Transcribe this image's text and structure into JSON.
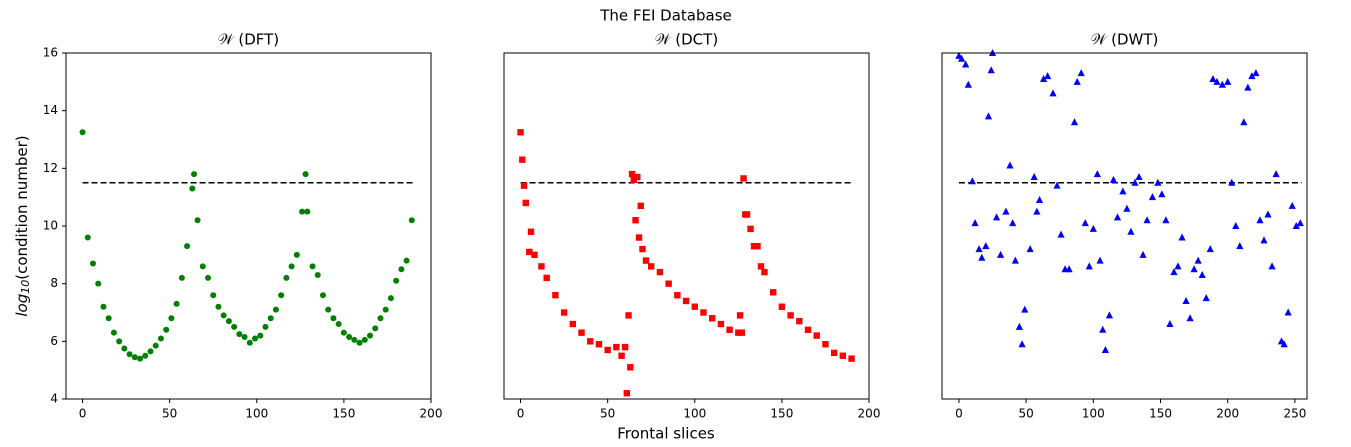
{
  "title": "The FEI Database",
  "xlabel": "Frontal slices",
  "ylabel": {
    "base": "log",
    "sub": "10",
    "rest": "(condition number)"
  },
  "chart_data": [
    {
      "type": "scatter",
      "title": "𝒲 (DFT)",
      "color": "#008000",
      "marker": "circle",
      "xlim": [
        -9.5,
        200
      ],
      "xticks": [
        0,
        50,
        100,
        150,
        200
      ],
      "ylim": [
        4,
        16
      ],
      "yticks": [
        4,
        6,
        8,
        10,
        12,
        14,
        16
      ],
      "hline": {
        "y": 11.5,
        "x": [
          0,
          190
        ],
        "color": "#000000"
      },
      "x": [
        0,
        3,
        6,
        9,
        12,
        15,
        18,
        21,
        24,
        27,
        30,
        33,
        36,
        39,
        42,
        45,
        48,
        51,
        54,
        57,
        60,
        63,
        64,
        66,
        69,
        72,
        75,
        78,
        81,
        84,
        87,
        90,
        93,
        96,
        99,
        102,
        105,
        108,
        111,
        114,
        117,
        120,
        123,
        126,
        128,
        129,
        132,
        135,
        138,
        141,
        144,
        147,
        150,
        153,
        156,
        159,
        162,
        165,
        168,
        171,
        174,
        177,
        180,
        183,
        186,
        189
      ],
      "values": [
        13.25,
        9.6,
        8.7,
        8.0,
        7.2,
        6.8,
        6.3,
        6.0,
        5.75,
        5.55,
        5.45,
        5.4,
        5.5,
        5.65,
        5.85,
        6.1,
        6.4,
        6.8,
        7.3,
        8.2,
        9.3,
        11.3,
        11.8,
        10.2,
        8.6,
        8.2,
        7.6,
        7.2,
        6.9,
        6.7,
        6.5,
        6.25,
        6.15,
        5.95,
        6.1,
        6.2,
        6.5,
        6.8,
        7.1,
        7.6,
        8.2,
        8.6,
        9.0,
        10.5,
        11.8,
        10.5,
        8.6,
        8.3,
        7.6,
        7.1,
        6.8,
        6.6,
        6.3,
        6.15,
        6.05,
        5.95,
        6.05,
        6.2,
        6.45,
        6.8,
        7.1,
        7.5,
        8.1,
        8.5,
        8.8,
        10.2
      ]
    },
    {
      "type": "scatter",
      "title": "𝒲 (DCT)",
      "color": "#ff0000",
      "marker": "square",
      "xlim": [
        -9.5,
        200
      ],
      "xticks": [
        0,
        50,
        100,
        150,
        200
      ],
      "ylim": [
        4,
        16
      ],
      "hline": {
        "y": 11.5,
        "x": [
          0,
          190
        ],
        "color": "#000000"
      },
      "x": [
        0,
        1,
        2,
        3,
        5,
        6,
        8,
        12,
        15,
        20,
        25,
        30,
        35,
        40,
        45,
        50,
        55,
        58,
        60,
        61,
        62,
        63,
        64,
        65,
        66,
        67,
        68,
        69,
        70,
        72,
        75,
        80,
        85,
        90,
        95,
        100,
        105,
        110,
        115,
        120,
        125,
        126,
        127,
        128,
        129,
        130,
        132,
        134,
        136,
        138,
        140,
        145,
        150,
        155,
        160,
        165,
        170,
        175,
        180,
        185,
        190
      ],
      "values": [
        13.25,
        12.3,
        11.4,
        10.8,
        9.1,
        9.8,
        9.0,
        8.6,
        8.2,
        7.6,
        7.0,
        6.6,
        6.3,
        6.0,
        5.9,
        5.7,
        5.8,
        5.5,
        5.8,
        4.2,
        6.9,
        5.1,
        11.8,
        11.6,
        10.2,
        11.7,
        9.6,
        10.7,
        9.2,
        8.8,
        8.6,
        8.4,
        8.0,
        7.6,
        7.4,
        7.2,
        7.0,
        6.8,
        6.6,
        6.4,
        6.3,
        6.9,
        6.3,
        11.65,
        10.4,
        10.4,
        9.9,
        9.3,
        9.3,
        8.6,
        8.4,
        7.7,
        7.2,
        6.9,
        6.7,
        6.4,
        6.2,
        5.9,
        5.6,
        5.5,
        5.4
      ]
    },
    {
      "type": "scatter",
      "title": "𝒲 (DWT)",
      "color": "#0000ff",
      "marker": "triangle",
      "xlim": [
        -12.6,
        259
      ],
      "xticks": [
        0,
        50,
        100,
        150,
        200,
        250
      ],
      "ylim": [
        4,
        16
      ],
      "hline": {
        "y": 11.5,
        "x": [
          0,
          255
        ],
        "color": "#000000"
      },
      "x": [
        0,
        2,
        5,
        7,
        10,
        12,
        15,
        17,
        20,
        22,
        24,
        25,
        28,
        31,
        35,
        38,
        40,
        42,
        45,
        47,
        49,
        53,
        56,
        58,
        60,
        63,
        66,
        70,
        73,
        76,
        79,
        82,
        86,
        88,
        91,
        94,
        97,
        100,
        103,
        105,
        107,
        109,
        112,
        115,
        118,
        122,
        125,
        128,
        131,
        134,
        137,
        140,
        144,
        148,
        151,
        154,
        157,
        160,
        163,
        166,
        169,
        172,
        175,
        178,
        181,
        184,
        187,
        189,
        192,
        196,
        200,
        203,
        206,
        209,
        212,
        215,
        218,
        221,
        224,
        227,
        230,
        233,
        236,
        240,
        242,
        245,
        248,
        251,
        254
      ],
      "values": [
        15.9,
        15.8,
        15.6,
        14.9,
        11.55,
        10.1,
        9.2,
        8.9,
        9.3,
        13.8,
        15.4,
        16.0,
        10.3,
        9.0,
        10.5,
        12.1,
        10.1,
        8.8,
        6.5,
        5.9,
        7.1,
        9.2,
        11.7,
        10.5,
        10.9,
        15.1,
        15.2,
        14.6,
        11.4,
        9.7,
        8.5,
        8.5,
        13.6,
        15.0,
        15.3,
        10.1,
        8.6,
        9.9,
        11.8,
        8.8,
        6.4,
        5.7,
        6.9,
        11.6,
        10.3,
        11.2,
        10.6,
        9.8,
        11.5,
        11.7,
        9.0,
        10.2,
        11.0,
        11.5,
        11.1,
        10.2,
        6.6,
        8.4,
        8.6,
        9.6,
        7.4,
        6.8,
        8.5,
        8.8,
        8.3,
        7.5,
        9.2,
        15.1,
        15.0,
        14.9,
        15.0,
        11.5,
        10.0,
        9.3,
        13.6,
        14.8,
        15.2,
        15.3,
        10.2,
        9.5,
        10.4,
        8.6,
        11.8,
        6.0,
        5.9,
        7.0,
        10.7,
        10.0,
        10.1
      ]
    }
  ]
}
